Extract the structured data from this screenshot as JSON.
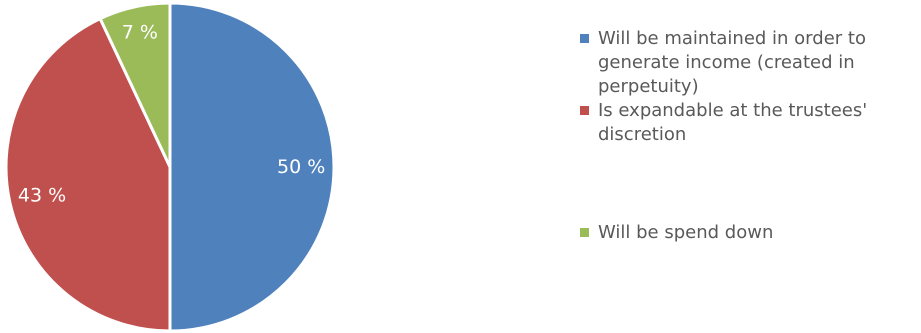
{
  "chart_data": {
    "type": "pie",
    "slices": [
      {
        "label": "Will be maintained in order to generate income (created in perpetuity)",
        "value": 50,
        "display": "50 %",
        "color": "#4F81BD"
      },
      {
        "label": "Is expandable at the trustees' discretion",
        "value": 43,
        "display": "43 %",
        "color": "#C0504D"
      },
      {
        "label": "Will be spend down",
        "value": 7,
        "display": "7 %",
        "color": "#9BBB59"
      }
    ],
    "legend_position": "right",
    "start_angle": "12 o'clock, clockwise"
  }
}
